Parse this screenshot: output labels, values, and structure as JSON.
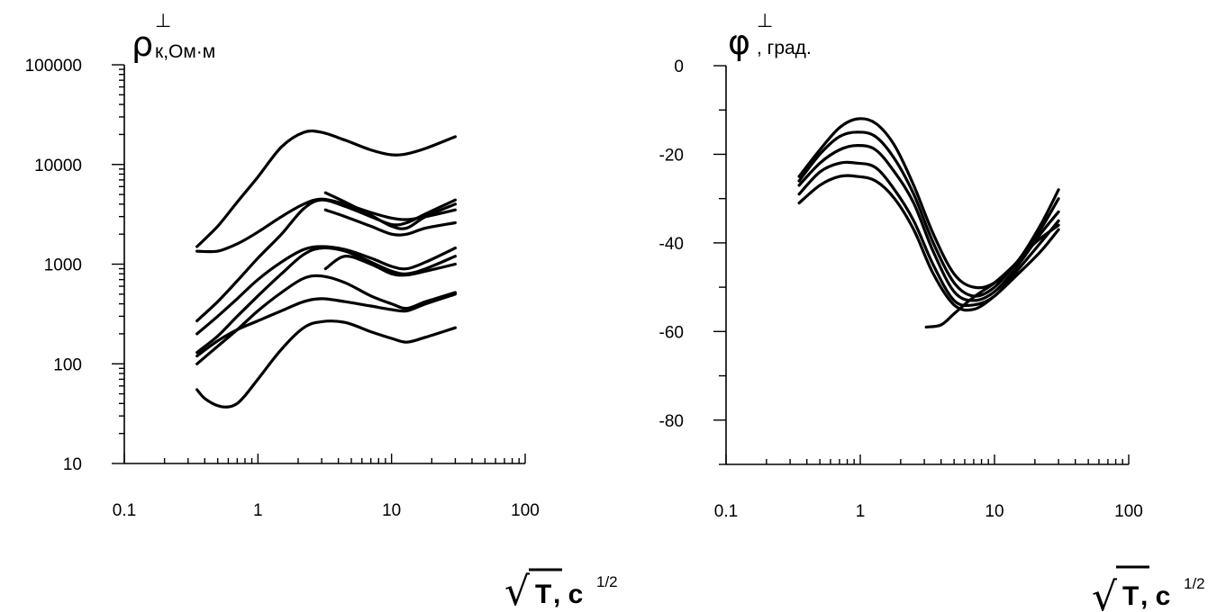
{
  "chart_data": [
    {
      "type": "line",
      "title": "",
      "ylabel": {
        "symbol": "ρ",
        "superscript": "⊥",
        "subscript": "к,Ом·м"
      },
      "xlabel": {
        "main": "T",
        "suffix": ", с",
        "superscript": "1/2"
      },
      "x_scale": "log",
      "y_scale": "log",
      "xlim": [
        0.1,
        100
      ],
      "ylim": [
        10,
        100000
      ],
      "x_ticks": [
        "0.1",
        "1",
        "10",
        "100"
      ],
      "y_ticks": [
        "10",
        "100",
        "1000",
        "10000",
        "100000"
      ],
      "grid": false,
      "series": [
        {
          "x": [
            0.35,
            0.5,
            0.7,
            1.0,
            1.5,
            2.2,
            3.0,
            4.5,
            7,
            10,
            13,
            18,
            30
          ],
          "y": [
            1500,
            2400,
            4200,
            7500,
            15000,
            21000,
            21000,
            17500,
            14000,
            12500,
            12800,
            14500,
            19000
          ]
        },
        {
          "x": [
            0.35,
            0.5,
            0.7,
            1.0,
            1.5,
            2.2,
            3.0,
            4.5,
            7,
            10,
            13,
            18,
            30
          ],
          "y": [
            1350,
            1350,
            1600,
            2100,
            3000,
            4000,
            4500,
            4000,
            3300,
            2900,
            2800,
            3000,
            3500
          ]
        },
        {
          "x": [
            0.35,
            0.5,
            0.7,
            1.0,
            1.5,
            2.2,
            3.0,
            4.5,
            7,
            10,
            13,
            18,
            30
          ],
          "y": [
            270,
            420,
            680,
            1150,
            2000,
            3600,
            4400,
            3800,
            3000,
            2500,
            2600,
            3200,
            4400
          ]
        },
        {
          "x": [
            3.2,
            4.5,
            7,
            10,
            13,
            18,
            30
          ],
          "y": [
            5200,
            4200,
            3100,
            2400,
            2300,
            3000,
            4000
          ]
        },
        {
          "x": [
            3.2,
            4.5,
            7,
            10,
            13,
            18,
            30
          ],
          "y": [
            3500,
            3000,
            2400,
            2000,
            2000,
            2300,
            2600
          ]
        },
        {
          "x": [
            0.35,
            0.5,
            0.7,
            1.0,
            1.5,
            2.2,
            3.0,
            4.5,
            7,
            10,
            13,
            18,
            30
          ],
          "y": [
            200,
            300,
            450,
            700,
            1050,
            1400,
            1500,
            1400,
            1150,
            950,
            900,
            1050,
            1450
          ]
        },
        {
          "x": [
            0.35,
            0.5,
            0.7,
            1.0,
            1.5,
            2.2,
            3.0,
            4.5,
            7,
            10,
            13,
            18,
            30
          ],
          "y": [
            130,
            190,
            300,
            480,
            800,
            1250,
            1450,
            1350,
            1050,
            850,
            800,
            900,
            1200
          ]
        },
        {
          "x": [
            3.2,
            4.5,
            7,
            10,
            13,
            18,
            30
          ],
          "y": [
            900,
            1200,
            1000,
            800,
            780,
            850,
            1000
          ]
        },
        {
          "x": [
            0.35,
            0.5,
            0.7,
            1.0,
            1.5,
            2.2,
            3.0,
            4.5,
            7,
            10,
            13,
            18,
            30
          ],
          "y": [
            100,
            150,
            220,
            340,
            520,
            720,
            760,
            650,
            480,
            400,
            360,
            420,
            520
          ]
        },
        {
          "x": [
            0.35,
            0.5,
            0.7,
            1.0,
            1.5,
            2.2,
            3.0,
            4.5,
            7,
            10,
            13,
            18,
            30
          ],
          "y": [
            120,
            170,
            220,
            270,
            340,
            420,
            450,
            420,
            380,
            350,
            340,
            400,
            500
          ]
        },
        {
          "x": [
            0.35,
            0.4,
            0.5,
            0.6,
            0.7,
            0.8,
            1.0,
            1.5,
            2.2,
            3.0,
            4.5,
            7,
            10,
            13,
            18,
            30
          ],
          "y": [
            55,
            45,
            38,
            37,
            40,
            48,
            70,
            140,
            230,
            265,
            260,
            210,
            180,
            165,
            185,
            230
          ]
        }
      ]
    },
    {
      "type": "line",
      "title": "",
      "ylabel": {
        "symbol": "φ",
        "superscript": "⊥",
        "subscript": ", град."
      },
      "xlabel": {
        "main": "T",
        "suffix": ", с",
        "superscript": "1/2"
      },
      "x_scale": "log",
      "y_scale": "linear",
      "xlim": [
        0.1,
        100
      ],
      "ylim": [
        -90,
        0
      ],
      "x_ticks": [
        "0.1",
        "1",
        "10",
        "100"
      ],
      "y_ticks": [
        "0",
        "-20",
        "-40",
        "-60",
        "-80"
      ],
      "grid": false,
      "series": [
        {
          "x": [
            0.35,
            0.5,
            0.7,
            0.95,
            1.3,
            1.8,
            2.5,
            3.5,
            5,
            7,
            10,
            15,
            22,
            30
          ],
          "y": [
            -25,
            -19,
            -14,
            -12,
            -13,
            -18,
            -27,
            -38,
            -47,
            -50,
            -49,
            -44,
            -36,
            -28
          ]
        },
        {
          "x": [
            0.35,
            0.5,
            0.7,
            0.95,
            1.3,
            1.8,
            2.5,
            3.5,
            5,
            7,
            10,
            15,
            22,
            30
          ],
          "y": [
            -26,
            -20,
            -16,
            -15,
            -16,
            -21,
            -29,
            -40,
            -49,
            -52,
            -50,
            -44,
            -37,
            -30
          ]
        },
        {
          "x": [
            0.35,
            0.5,
            0.7,
            0.95,
            1.3,
            1.8,
            2.5,
            3.5,
            5,
            7,
            10,
            15,
            22,
            30
          ],
          "y": [
            -27,
            -22,
            -19,
            -18,
            -19,
            -24,
            -31,
            -42,
            -51,
            -53,
            -51,
            -45,
            -38,
            -33
          ]
        },
        {
          "x": [
            0.35,
            0.5,
            0.7,
            0.95,
            1.3,
            1.8,
            2.5,
            3.5,
            5,
            7,
            10,
            15,
            22,
            30
          ],
          "y": [
            -29,
            -24,
            -22,
            -22,
            -23,
            -28,
            -35,
            -45,
            -53,
            -54,
            -52,
            -46,
            -40,
            -35
          ]
        },
        {
          "x": [
            0.35,
            0.5,
            0.7,
            0.95,
            1.3,
            1.8,
            2.5,
            3.5,
            5,
            7,
            10,
            15,
            22,
            30
          ],
          "y": [
            -31,
            -27,
            -25,
            -25,
            -26,
            -30,
            -37,
            -47,
            -54,
            -55,
            -52,
            -47,
            -42,
            -37
          ]
        },
        {
          "x": [
            3.1,
            4,
            5,
            6.5,
            8,
            10,
            14,
            20,
            30
          ],
          "y": [
            -59,
            -58.5,
            -56,
            -53,
            -51,
            -49,
            -45,
            -40,
            -36
          ]
        }
      ]
    }
  ]
}
